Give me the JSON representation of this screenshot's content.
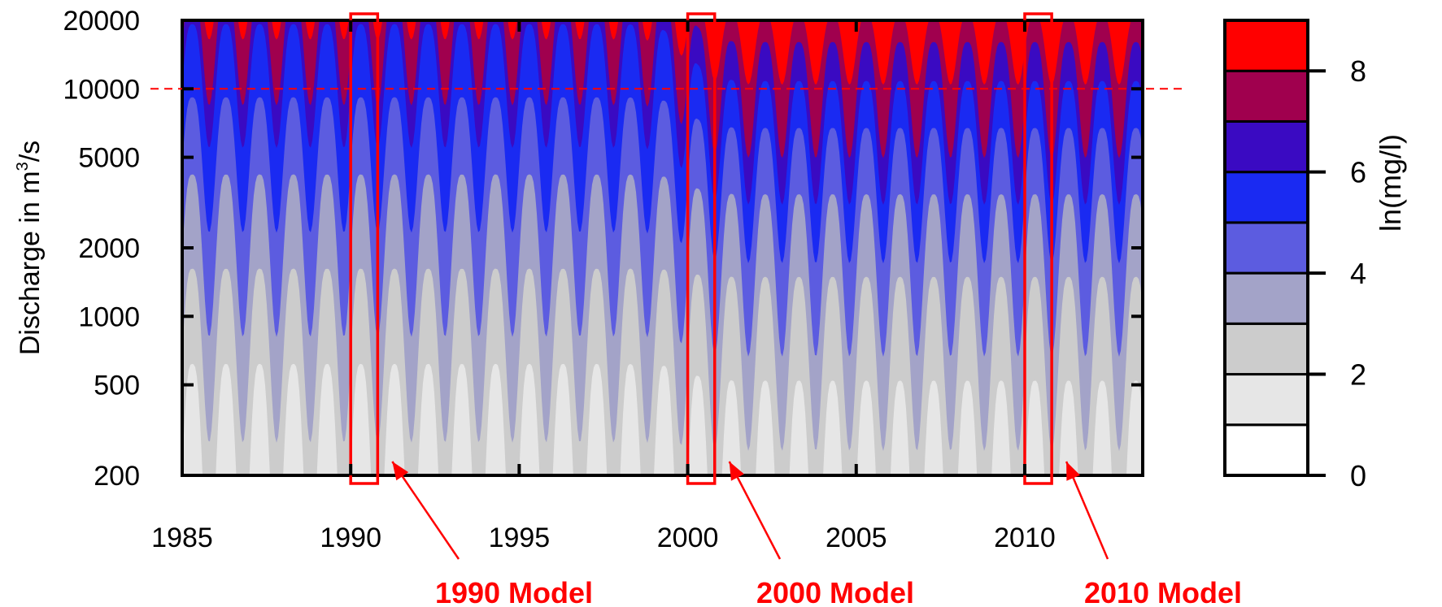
{
  "chart_data": {
    "type": "heatmap",
    "x_ticks": [
      1985,
      1990,
      1995,
      2000,
      2005,
      2010
    ],
    "xlim": [
      1985,
      2013.5
    ],
    "y_ticks": [
      20000,
      10000,
      5000,
      2000,
      1000,
      500,
      200
    ],
    "ylim": [
      200,
      20000
    ],
    "y_scale": "log",
    "ylabel": "Discharge in m",
    "ylabel_sup": "3",
    "ylabel_tail": "/s",
    "colorbar_label": "ln(mg/l)",
    "colorbar_ticks": [
      0,
      2,
      4,
      6,
      8
    ],
    "colorbar_range": [
      0,
      9
    ],
    "levels": [
      0,
      1,
      2,
      3,
      4,
      5,
      6,
      7,
      8,
      9
    ],
    "level_colors": [
      "#ffffff",
      "#e6e6e6",
      "#cccccc",
      "#a3a3c8",
      "#5c5ce0",
      "#1a2af2",
      "#3a0ac2",
      "#a0004e",
      "#ff0000"
    ],
    "reference_line": {
      "y": 10000,
      "style": "dashed",
      "color": "#ff0000"
    },
    "model_windows": [
      {
        "x_start": 1990.0,
        "x_end": 1990.8,
        "label": "1990 Model"
      },
      {
        "x_start": 2000.0,
        "x_end": 2000.8,
        "label": "2000 Model"
      },
      {
        "x_start": 2010.0,
        "x_end": 2010.8,
        "label": "2010 Model"
      }
    ],
    "contour_bands": [
      {
        "level": 1,
        "center_era1": 450,
        "center_era2": 380,
        "amplitude": 0.55
      },
      {
        "level": 2,
        "center_era1": 1250,
        "center_era2": 1150,
        "amplitude": 0.45
      },
      {
        "level": 3,
        "center_era1": 3300,
        "center_era2": 2700,
        "amplitude": 0.42
      },
      {
        "level": 4,
        "center_era1": 7500,
        "center_era2": 5500,
        "amplitude": 0.35
      },
      {
        "level": 5,
        "center_era1": 16000,
        "center_era2": 9000,
        "amplitude": 0.32
      },
      {
        "level": 6,
        "center_era1": 23000,
        "center_era2": 13500,
        "amplitude": 0.3
      },
      {
        "level": 7,
        "center_era1": 30000,
        "center_era2": 19000,
        "amplitude": 0.18
      }
    ],
    "era_split_year": 2000
  },
  "colors": {
    "axis": "#000000",
    "annotation": "#ff0000"
  }
}
